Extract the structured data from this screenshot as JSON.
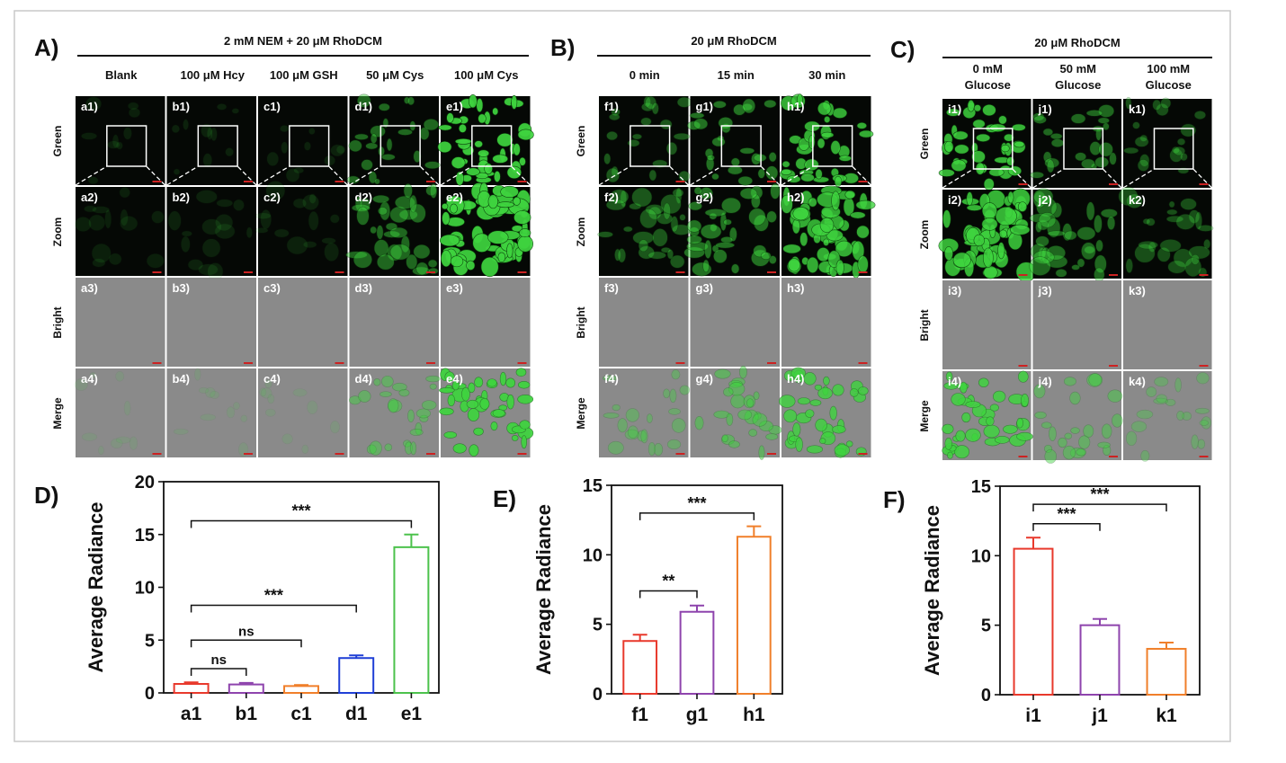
{
  "colors": {
    "frame": "#c8c8c8",
    "ink": "#111111",
    "cell_dark": "#050805",
    "cell_gray": "#8a8a8a",
    "fluor": "#3fd43f",
    "scale_bar": "#cc2222",
    "bar_red": "#e8392c",
    "bar_purple": "#8e44ad",
    "bar_orange": "#f07f2a",
    "bar_blue": "#1f3fd6",
    "bar_green": "#4cc24c"
  },
  "panels": [
    {
      "letter": "A)",
      "header": "2 mM NEM + 20 μM RhoDCM",
      "prefixes": [
        "a",
        "b",
        "c",
        "d",
        "e"
      ],
      "columns": [
        [
          "Blank"
        ],
        [
          "100 μM Hcy"
        ],
        [
          "100 μM GSH"
        ],
        [
          "50 μM Cys"
        ],
        [
          "100 μM Cys"
        ]
      ],
      "intensity": [
        0.04,
        0.05,
        0.05,
        0.45,
        1.0
      ]
    },
    {
      "letter": "B)",
      "header": "20 μM RhoDCM",
      "prefixes": [
        "f",
        "g",
        "h"
      ],
      "columns": [
        [
          "0 min"
        ],
        [
          "15 min"
        ],
        [
          "30 min"
        ]
      ],
      "intensity": [
        0.35,
        0.5,
        0.85
      ]
    },
    {
      "letter": "C)",
      "header": "20 μM RhoDCM",
      "prefixes": [
        "i",
        "j",
        "k"
      ],
      "columns": [
        [
          "0 mM",
          "Glucose"
        ],
        [
          "50 mM",
          "Glucose"
        ],
        [
          "100 mM",
          "Glucose"
        ]
      ],
      "intensity": [
        0.9,
        0.45,
        0.3
      ]
    }
  ],
  "row_labels": [
    "Green",
    "Zoom",
    "Bright",
    "Merge"
  ],
  "chart_data": [
    {
      "panel": "D)",
      "type": "bar",
      "categories": [
        "a1",
        "b1",
        "c1",
        "d1",
        "e1"
      ],
      "values": [
        0.85,
        0.8,
        0.65,
        3.3,
        13.8
      ],
      "errors": [
        0.15,
        0.15,
        0.1,
        0.25,
        1.2
      ],
      "colors": [
        "#e8392c",
        "#8e44ad",
        "#f07f2a",
        "#1f3fd6",
        "#4cc24c"
      ],
      "ylabel": "Average Radiance",
      "ylim": [
        0,
        20
      ],
      "yticks": [
        0,
        5,
        10,
        15,
        20
      ],
      "significance": [
        {
          "from": 0,
          "to": 1,
          "label": "ns",
          "y": 2.3
        },
        {
          "from": 0,
          "to": 2,
          "label": "ns",
          "y": 5.0
        },
        {
          "from": 0,
          "to": 3,
          "label": "***",
          "y": 8.3
        },
        {
          "from": 0,
          "to": 4,
          "label": "***",
          "y": 16.3
        }
      ]
    },
    {
      "panel": "E)",
      "type": "bar",
      "categories": [
        "f1",
        "g1",
        "h1"
      ],
      "values": [
        3.8,
        5.9,
        11.3
      ],
      "errors": [
        0.45,
        0.45,
        0.75
      ],
      "colors": [
        "#e8392c",
        "#8e44ad",
        "#f07f2a"
      ],
      "ylabel": "Average Radiance",
      "ylim": [
        0,
        15
      ],
      "yticks": [
        0,
        5,
        10,
        15
      ],
      "significance": [
        {
          "from": 0,
          "to": 1,
          "label": "**",
          "y": 7.4
        },
        {
          "from": 0,
          "to": 2,
          "label": "***",
          "y": 13.0
        }
      ]
    },
    {
      "panel": "F)",
      "type": "bar",
      "categories": [
        "i1",
        "j1",
        "k1"
      ],
      "values": [
        10.5,
        5.0,
        3.3
      ],
      "errors": [
        0.8,
        0.45,
        0.45
      ],
      "colors": [
        "#e8392c",
        "#8e44ad",
        "#f07f2a"
      ],
      "ylabel": "Average Radiance",
      "ylim": [
        0,
        15
      ],
      "yticks": [
        0,
        5,
        10,
        15
      ],
      "significance": [
        {
          "from": 0,
          "to": 1,
          "label": "***",
          "y": 12.3
        },
        {
          "from": 0,
          "to": 2,
          "label": "***",
          "y": 13.7
        }
      ]
    }
  ]
}
